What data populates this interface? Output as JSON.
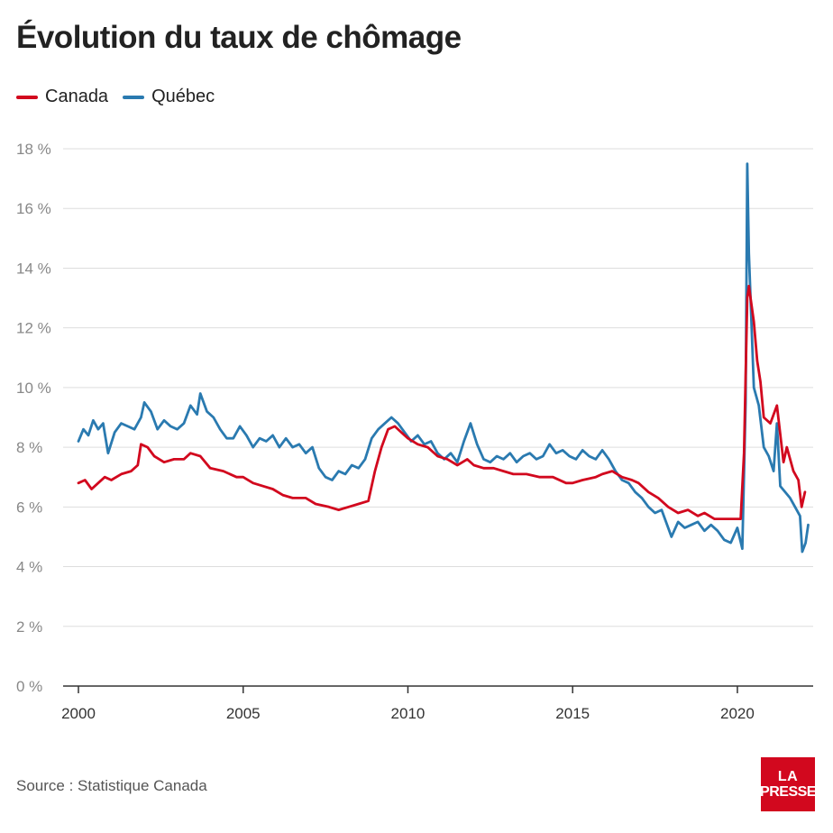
{
  "title": "Évolution du taux de chômage",
  "source": "Source : Statistique Canada",
  "logo": {
    "line1": "LA",
    "line2": "PRESSE",
    "color": "#d2081e"
  },
  "colors": {
    "grid": "#dddddd",
    "axis": "#333333",
    "tick_text": "#888888",
    "x_tick_text": "#333333"
  },
  "chart_data": {
    "type": "line",
    "title": "Évolution du taux de chômage",
    "xlabel": "",
    "ylabel": "",
    "xlim": [
      2000,
      2022.3
    ],
    "ylim": [
      0,
      18
    ],
    "x_ticks": [
      2000,
      2005,
      2010,
      2015,
      2020
    ],
    "y_ticks": [
      0,
      2,
      4,
      6,
      8,
      10,
      12,
      14,
      16,
      18
    ],
    "y_tick_labels": [
      "0 %",
      "2 %",
      "4 %",
      "6 %",
      "8 %",
      "10 %",
      "12 %",
      "14 %",
      "16 %",
      "18 %"
    ],
    "grid": true,
    "legend": "top-left",
    "series": [
      {
        "name": "Canada",
        "color": "#d2081e",
        "points": [
          [
            2000.0,
            6.8
          ],
          [
            2000.2,
            6.9
          ],
          [
            2000.4,
            6.6
          ],
          [
            2000.6,
            6.8
          ],
          [
            2000.8,
            7.0
          ],
          [
            2001.0,
            6.9
          ],
          [
            2001.3,
            7.1
          ],
          [
            2001.6,
            7.2
          ],
          [
            2001.8,
            7.4
          ],
          [
            2001.9,
            8.1
          ],
          [
            2002.1,
            8.0
          ],
          [
            2002.3,
            7.7
          ],
          [
            2002.6,
            7.5
          ],
          [
            2002.9,
            7.6
          ],
          [
            2003.2,
            7.6
          ],
          [
            2003.4,
            7.8
          ],
          [
            2003.7,
            7.7
          ],
          [
            2004.0,
            7.3
          ],
          [
            2004.4,
            7.2
          ],
          [
            2004.8,
            7.0
          ],
          [
            2005.0,
            7.0
          ],
          [
            2005.3,
            6.8
          ],
          [
            2005.6,
            6.7
          ],
          [
            2005.9,
            6.6
          ],
          [
            2006.2,
            6.4
          ],
          [
            2006.5,
            6.3
          ],
          [
            2006.9,
            6.3
          ],
          [
            2007.2,
            6.1
          ],
          [
            2007.6,
            6.0
          ],
          [
            2007.9,
            5.9
          ],
          [
            2008.2,
            6.0
          ],
          [
            2008.5,
            6.1
          ],
          [
            2008.8,
            6.2
          ],
          [
            2009.0,
            7.2
          ],
          [
            2009.2,
            8.0
          ],
          [
            2009.4,
            8.6
          ],
          [
            2009.6,
            8.7
          ],
          [
            2009.8,
            8.5
          ],
          [
            2010.0,
            8.3
          ],
          [
            2010.3,
            8.1
          ],
          [
            2010.6,
            8.0
          ],
          [
            2010.9,
            7.7
          ],
          [
            2011.2,
            7.6
          ],
          [
            2011.5,
            7.4
          ],
          [
            2011.8,
            7.6
          ],
          [
            2012.0,
            7.4
          ],
          [
            2012.3,
            7.3
          ],
          [
            2012.6,
            7.3
          ],
          [
            2012.9,
            7.2
          ],
          [
            2013.2,
            7.1
          ],
          [
            2013.6,
            7.1
          ],
          [
            2014.0,
            7.0
          ],
          [
            2014.4,
            7.0
          ],
          [
            2014.8,
            6.8
          ],
          [
            2015.0,
            6.8
          ],
          [
            2015.3,
            6.9
          ],
          [
            2015.7,
            7.0
          ],
          [
            2015.9,
            7.1
          ],
          [
            2016.2,
            7.2
          ],
          [
            2016.5,
            7.0
          ],
          [
            2016.8,
            6.9
          ],
          [
            2017.0,
            6.8
          ],
          [
            2017.3,
            6.5
          ],
          [
            2017.6,
            6.3
          ],
          [
            2017.9,
            6.0
          ],
          [
            2018.2,
            5.8
          ],
          [
            2018.5,
            5.9
          ],
          [
            2018.8,
            5.7
          ],
          [
            2019.0,
            5.8
          ],
          [
            2019.3,
            5.6
          ],
          [
            2019.6,
            5.6
          ],
          [
            2019.9,
            5.6
          ],
          [
            2020.1,
            5.6
          ],
          [
            2020.2,
            7.8
          ],
          [
            2020.3,
            13.0
          ],
          [
            2020.35,
            13.4
          ],
          [
            2020.5,
            12.2
          ],
          [
            2020.6,
            10.9
          ],
          [
            2020.7,
            10.2
          ],
          [
            2020.8,
            9.0
          ],
          [
            2021.0,
            8.8
          ],
          [
            2021.2,
            9.4
          ],
          [
            2021.4,
            7.5
          ],
          [
            2021.5,
            8.0
          ],
          [
            2021.7,
            7.2
          ],
          [
            2021.85,
            6.9
          ],
          [
            2021.95,
            6.0
          ],
          [
            2022.05,
            6.5
          ]
        ]
      },
      {
        "name": "Québec",
        "color": "#2a7ab0",
        "points": [
          [
            2000.0,
            8.2
          ],
          [
            2000.15,
            8.6
          ],
          [
            2000.3,
            8.4
          ],
          [
            2000.45,
            8.9
          ],
          [
            2000.6,
            8.6
          ],
          [
            2000.75,
            8.8
          ],
          [
            2000.9,
            7.8
          ],
          [
            2001.1,
            8.5
          ],
          [
            2001.3,
            8.8
          ],
          [
            2001.5,
            8.7
          ],
          [
            2001.7,
            8.6
          ],
          [
            2001.9,
            9.0
          ],
          [
            2002.0,
            9.5
          ],
          [
            2002.2,
            9.2
          ],
          [
            2002.4,
            8.6
          ],
          [
            2002.6,
            8.9
          ],
          [
            2002.8,
            8.7
          ],
          [
            2003.0,
            8.6
          ],
          [
            2003.2,
            8.8
          ],
          [
            2003.4,
            9.4
          ],
          [
            2003.6,
            9.1
          ],
          [
            2003.7,
            9.8
          ],
          [
            2003.9,
            9.2
          ],
          [
            2004.1,
            9.0
          ],
          [
            2004.3,
            8.6
          ],
          [
            2004.5,
            8.3
          ],
          [
            2004.7,
            8.3
          ],
          [
            2004.9,
            8.7
          ],
          [
            2005.1,
            8.4
          ],
          [
            2005.3,
            8.0
          ],
          [
            2005.5,
            8.3
          ],
          [
            2005.7,
            8.2
          ],
          [
            2005.9,
            8.4
          ],
          [
            2006.1,
            8.0
          ],
          [
            2006.3,
            8.3
          ],
          [
            2006.5,
            8.0
          ],
          [
            2006.7,
            8.1
          ],
          [
            2006.9,
            7.8
          ],
          [
            2007.1,
            8.0
          ],
          [
            2007.3,
            7.3
          ],
          [
            2007.5,
            7.0
          ],
          [
            2007.7,
            6.9
          ],
          [
            2007.9,
            7.2
          ],
          [
            2008.1,
            7.1
          ],
          [
            2008.3,
            7.4
          ],
          [
            2008.5,
            7.3
          ],
          [
            2008.7,
            7.6
          ],
          [
            2008.9,
            8.3
          ],
          [
            2009.1,
            8.6
          ],
          [
            2009.3,
            8.8
          ],
          [
            2009.5,
            9.0
          ],
          [
            2009.7,
            8.8
          ],
          [
            2009.9,
            8.5
          ],
          [
            2010.1,
            8.2
          ],
          [
            2010.3,
            8.4
          ],
          [
            2010.5,
            8.1
          ],
          [
            2010.7,
            8.2
          ],
          [
            2010.9,
            7.8
          ],
          [
            2011.1,
            7.6
          ],
          [
            2011.3,
            7.8
          ],
          [
            2011.5,
            7.5
          ],
          [
            2011.7,
            8.2
          ],
          [
            2011.9,
            8.8
          ],
          [
            2012.1,
            8.1
          ],
          [
            2012.3,
            7.6
          ],
          [
            2012.5,
            7.5
          ],
          [
            2012.7,
            7.7
          ],
          [
            2012.9,
            7.6
          ],
          [
            2013.1,
            7.8
          ],
          [
            2013.3,
            7.5
          ],
          [
            2013.5,
            7.7
          ],
          [
            2013.7,
            7.8
          ],
          [
            2013.9,
            7.6
          ],
          [
            2014.1,
            7.7
          ],
          [
            2014.3,
            8.1
          ],
          [
            2014.5,
            7.8
          ],
          [
            2014.7,
            7.9
          ],
          [
            2014.9,
            7.7
          ],
          [
            2015.1,
            7.6
          ],
          [
            2015.3,
            7.9
          ],
          [
            2015.5,
            7.7
          ],
          [
            2015.7,
            7.6
          ],
          [
            2015.9,
            7.9
          ],
          [
            2016.1,
            7.6
          ],
          [
            2016.3,
            7.2
          ],
          [
            2016.5,
            6.9
          ],
          [
            2016.7,
            6.8
          ],
          [
            2016.9,
            6.5
          ],
          [
            2017.1,
            6.3
          ],
          [
            2017.3,
            6.0
          ],
          [
            2017.5,
            5.8
          ],
          [
            2017.7,
            5.9
          ],
          [
            2017.9,
            5.3
          ],
          [
            2018.0,
            5.0
          ],
          [
            2018.2,
            5.5
          ],
          [
            2018.4,
            5.3
          ],
          [
            2018.6,
            5.4
          ],
          [
            2018.8,
            5.5
          ],
          [
            2019.0,
            5.2
          ],
          [
            2019.2,
            5.4
          ],
          [
            2019.4,
            5.2
          ],
          [
            2019.6,
            4.9
          ],
          [
            2019.8,
            4.8
          ],
          [
            2020.0,
            5.3
          ],
          [
            2020.15,
            4.6
          ],
          [
            2020.25,
            9.5
          ],
          [
            2020.3,
            17.5
          ],
          [
            2020.35,
            14.5
          ],
          [
            2020.5,
            10.0
          ],
          [
            2020.65,
            9.4
          ],
          [
            2020.8,
            8.0
          ],
          [
            2020.95,
            7.7
          ],
          [
            2021.1,
            7.2
          ],
          [
            2021.2,
            8.8
          ],
          [
            2021.3,
            6.7
          ],
          [
            2021.45,
            6.5
          ],
          [
            2021.6,
            6.3
          ],
          [
            2021.75,
            6.0
          ],
          [
            2021.9,
            5.7
          ],
          [
            2021.97,
            4.5
          ],
          [
            2022.07,
            4.8
          ],
          [
            2022.15,
            5.4
          ]
        ]
      }
    ]
  }
}
